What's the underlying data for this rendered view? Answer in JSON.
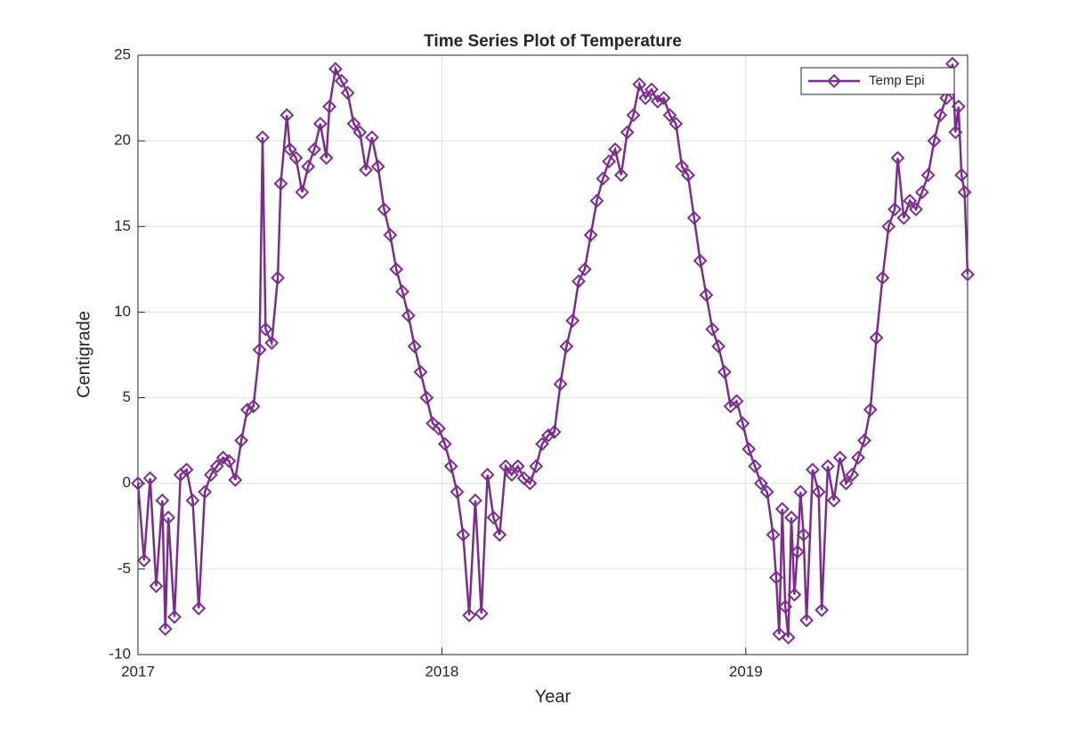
{
  "chart_data": {
    "type": "line",
    "title": "Time Series Plot of Temperature",
    "x_label": "Year",
    "y_label": "Centigrade",
    "x": [
      2017.0,
      2017.02,
      2017.04,
      2017.06,
      2017.08,
      2017.09,
      2017.1,
      2017.12,
      2017.14,
      2017.16,
      2017.18,
      2017.2,
      2017.22,
      2017.24,
      2017.26,
      2017.28,
      2017.3,
      2017.32,
      2017.34,
      2017.36,
      2017.38,
      2017.4,
      2017.41,
      2017.42,
      2017.44,
      2017.46,
      2017.47,
      2017.49,
      2017.5,
      2017.52,
      2017.54,
      2017.56,
      2017.58,
      2017.6,
      2017.62,
      2017.63,
      2017.65,
      2017.67,
      2017.69,
      2017.71,
      2017.73,
      2017.75,
      2017.77,
      2017.79,
      2017.81,
      2017.83,
      2017.85,
      2017.87,
      2017.89,
      2017.91,
      2017.93,
      2017.95,
      2017.97,
      2017.99,
      2018.01,
      2018.03,
      2018.05,
      2018.07,
      2018.09,
      2018.11,
      2018.13,
      2018.15,
      2018.17,
      2018.19,
      2018.21,
      2018.23,
      2018.25,
      2018.27,
      2018.29,
      2018.31,
      2018.33,
      2018.35,
      2018.37,
      2018.39,
      2018.41,
      2018.43,
      2018.45,
      2018.47,
      2018.49,
      2018.51,
      2018.53,
      2018.55,
      2018.57,
      2018.59,
      2018.61,
      2018.63,
      2018.65,
      2018.67,
      2018.69,
      2018.71,
      2018.73,
      2018.75,
      2018.77,
      2018.79,
      2018.81,
      2018.83,
      2018.85,
      2018.87,
      2018.89,
      2018.91,
      2018.93,
      2018.95,
      2018.97,
      2018.99,
      2019.01,
      2019.03,
      2019.05,
      2019.07,
      2019.09,
      2019.1,
      2019.11,
      2019.12,
      2019.13,
      2019.14,
      2019.15,
      2019.16,
      2019.17,
      2019.18,
      2019.19,
      2019.2,
      2019.22,
      2019.24,
      2019.25,
      2019.27,
      2019.29,
      2019.31,
      2019.33,
      2019.35,
      2019.37,
      2019.39,
      2019.41,
      2019.43,
      2019.45,
      2019.47,
      2019.49,
      2019.5,
      2019.52,
      2019.54,
      2019.56,
      2019.58,
      2019.6,
      2019.62,
      2019.64,
      2019.66,
      2019.68,
      2019.69,
      2019.7,
      2019.71,
      2019.72,
      2019.73
    ],
    "series": [
      {
        "name": "Temp Epi",
        "color": "#7b2d8e",
        "marker": "diamond",
        "values": [
          0,
          -4.5,
          0.3,
          -6,
          -1,
          -8.5,
          -2,
          -7.8,
          0.5,
          0.8,
          -1,
          -7.3,
          -0.5,
          0.5,
          1,
          1.5,
          1.3,
          0.2,
          2.5,
          4.3,
          4.5,
          7.8,
          20.2,
          9,
          8.2,
          12,
          17.5,
          21.5,
          19.5,
          19,
          17,
          18.5,
          19.5,
          21,
          19,
          22,
          24.2,
          23.5,
          22.8,
          21,
          20.5,
          18.3,
          20.2,
          18.5,
          16,
          14.5,
          12.5,
          11.2,
          9.8,
          8,
          6.5,
          5,
          3.5,
          3.2,
          2.3,
          1,
          -0.5,
          -3,
          -7.7,
          -1,
          -7.6,
          0.5,
          -2,
          -3,
          1,
          0.5,
          1,
          0.3,
          0,
          1,
          2.3,
          2.8,
          3,
          5.8,
          8,
          9.5,
          11.8,
          12.5,
          14.5,
          16.5,
          17.8,
          18.8,
          19.5,
          18,
          20.5,
          21.5,
          23.3,
          22.5,
          23,
          22.3,
          22.5,
          21.5,
          21,
          18.5,
          18,
          15.5,
          13,
          11,
          9,
          8,
          6.5,
          4.5,
          4.8,
          3.5,
          2,
          1,
          0,
          -0.5,
          -3,
          -5.5,
          -8.8,
          -1.5,
          -7.2,
          -9,
          -2,
          -6.5,
          -4,
          -0.5,
          -3,
          -8,
          0.8,
          -0.5,
          -7.4,
          1,
          -1,
          1.5,
          0,
          0.5,
          1.5,
          2.5,
          4.3,
          8.5,
          12,
          15,
          16,
          19,
          15.5,
          16.5,
          16,
          17,
          18,
          20,
          21.5,
          22.5,
          24.5,
          20.5,
          22,
          18,
          17,
          12.2
        ]
      }
    ],
    "xlim": [
      2017,
      2019.73
    ],
    "xticks": [
      2017,
      2018,
      2019
    ],
    "ylim": [
      -10,
      25
    ],
    "yticks": [
      -10,
      -5,
      0,
      5,
      10,
      15,
      20,
      25
    ],
    "grid": true,
    "legend_position": "upper-right"
  }
}
